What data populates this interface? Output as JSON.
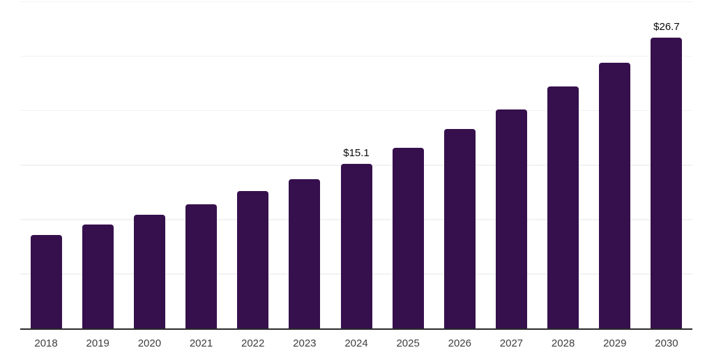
{
  "chart_data": {
    "type": "bar",
    "categories": [
      "2018",
      "2019",
      "2020",
      "2021",
      "2022",
      "2023",
      "2024",
      "2025",
      "2026",
      "2027",
      "2028",
      "2029",
      "2030"
    ],
    "values": [
      8.6,
      9.5,
      10.4,
      11.4,
      12.6,
      13.7,
      15.1,
      16.6,
      18.3,
      20.1,
      22.2,
      24.4,
      26.7
    ],
    "data_labels": {
      "2024": "$15.1",
      "2030": "$26.7"
    },
    "xlabel": "",
    "ylabel": "",
    "ylim": [
      0,
      30
    ],
    "gridline_step": 5,
    "grid": true,
    "legend": "none",
    "colors": {
      "bar": "#36104D",
      "value_label": "#0a0a0a",
      "tick_label": "#3d3d3d",
      "gridline": "#f2f2f2",
      "axis": "#2b2b2b",
      "background": "#ffffff"
    }
  }
}
